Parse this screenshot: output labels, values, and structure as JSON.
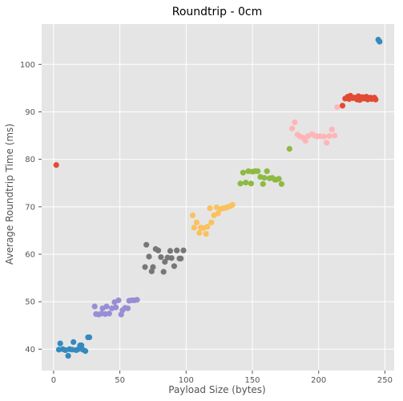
{
  "chart_data": {
    "type": "scatter",
    "title": "Roundtrip - 0cm",
    "xlabel": "Payload Size (bytes)",
    "ylabel": "Average Roundtrip Time (ms)",
    "xlim": [
      -9,
      257
    ],
    "ylim": [
      35.5,
      108.5
    ],
    "xticks": [
      0,
      50,
      100,
      150,
      200,
      250
    ],
    "yticks": [
      40,
      50,
      60,
      70,
      80,
      90,
      100
    ],
    "grid": true,
    "colors": {
      "background": "#E5E5E5",
      "grid": "#FFFFFF",
      "text": "#555555",
      "title": "#000000"
    },
    "series": [
      {
        "color": "#E24A33",
        "points": [
          [
            2,
            78.8
          ],
          [
            218,
            91.3
          ],
          [
            220,
            92.8
          ],
          [
            222,
            93.2
          ],
          [
            223,
            92.7
          ],
          [
            224,
            93.4
          ],
          [
            226,
            92.9
          ],
          [
            227,
            93.0
          ],
          [
            229,
            92.6
          ],
          [
            230,
            93.3
          ],
          [
            231,
            92.5
          ],
          [
            233,
            93.1
          ],
          [
            234,
            92.8
          ],
          [
            236,
            93.2
          ],
          [
            237,
            92.6
          ],
          [
            239,
            93.0
          ],
          [
            240,
            92.7
          ],
          [
            242,
            93.0
          ],
          [
            243,
            92.6
          ]
        ]
      },
      {
        "color": "#348ABD",
        "points": [
          [
            4,
            39.9
          ],
          [
            5,
            41.2
          ],
          [
            7,
            40.0
          ],
          [
            9,
            39.8
          ],
          [
            11,
            38.6
          ],
          [
            12,
            40.0
          ],
          [
            14,
            39.9
          ],
          [
            15,
            41.5
          ],
          [
            17,
            39.8
          ],
          [
            18,
            39.9
          ],
          [
            20,
            40.8
          ],
          [
            21,
            40.8
          ],
          [
            22,
            39.9
          ],
          [
            24,
            39.6
          ],
          [
            26,
            42.5
          ],
          [
            27,
            42.5
          ],
          [
            245,
            105.2
          ],
          [
            246,
            104.8
          ]
        ]
      },
      {
        "color": "#988ED5",
        "points": [
          [
            31,
            49.0
          ],
          [
            32,
            47.4
          ],
          [
            34,
            47.3
          ],
          [
            36,
            47.5
          ],
          [
            37,
            48.6
          ],
          [
            39,
            47.4
          ],
          [
            40,
            49.0
          ],
          [
            42,
            47.5
          ],
          [
            44,
            48.6
          ],
          [
            46,
            49.9
          ],
          [
            47,
            48.8
          ],
          [
            49,
            50.3
          ],
          [
            51,
            47.3
          ],
          [
            52,
            48.2
          ],
          [
            54,
            48.7
          ],
          [
            56,
            48.6
          ],
          [
            57,
            50.2
          ],
          [
            59,
            50.3
          ],
          [
            61,
            50.3
          ],
          [
            63,
            50.4
          ]
        ]
      },
      {
        "color": "#777777",
        "points": [
          [
            69,
            57.3
          ],
          [
            70,
            62.0
          ],
          [
            72,
            59.5
          ],
          [
            74,
            56.4
          ],
          [
            75,
            57.3
          ],
          [
            77,
            61.1
          ],
          [
            79,
            60.8
          ],
          [
            81,
            59.4
          ],
          [
            83,
            56.3
          ],
          [
            84,
            58.4
          ],
          [
            86,
            59.3
          ],
          [
            88,
            60.7
          ],
          [
            89,
            59.2
          ],
          [
            91,
            57.5
          ],
          [
            93,
            60.8
          ],
          [
            95,
            59.1
          ],
          [
            96,
            59.1
          ],
          [
            98,
            60.8
          ]
        ]
      },
      {
        "color": "#FBC15E",
        "points": [
          [
            105,
            68.2
          ],
          [
            106,
            65.6
          ],
          [
            108,
            66.7
          ],
          [
            110,
            64.5
          ],
          [
            111,
            65.6
          ],
          [
            113,
            65.5
          ],
          [
            115,
            64.3
          ],
          [
            116,
            65.8
          ],
          [
            118,
            69.7
          ],
          [
            119,
            66.7
          ],
          [
            121,
            68.2
          ],
          [
            123,
            69.9
          ],
          [
            124,
            68.6
          ],
          [
            126,
            69.5
          ],
          [
            128,
            69.7
          ],
          [
            130,
            69.8
          ],
          [
            131,
            69.9
          ],
          [
            133,
            70.1
          ],
          [
            135,
            70.4
          ]
        ]
      },
      {
        "color": "#8EBA42",
        "points": [
          [
            141,
            74.9
          ],
          [
            143,
            77.2
          ],
          [
            145,
            75.1
          ],
          [
            147,
            77.5
          ],
          [
            149,
            74.9
          ],
          [
            150,
            77.4
          ],
          [
            152,
            77.5
          ],
          [
            154,
            77.5
          ],
          [
            156,
            76.3
          ],
          [
            158,
            74.8
          ],
          [
            159,
            76.1
          ],
          [
            161,
            77.5
          ],
          [
            163,
            76.0
          ],
          [
            165,
            76.1
          ],
          [
            167,
            75.7
          ],
          [
            168,
            75.7
          ],
          [
            170,
            75.9
          ],
          [
            172,
            74.8
          ],
          [
            178,
            82.2
          ]
        ]
      },
      {
        "color": "#FFB5B8",
        "points": [
          [
            180,
            86.5
          ],
          [
            182,
            87.8
          ],
          [
            184,
            85.2
          ],
          [
            186,
            84.8
          ],
          [
            188,
            84.6
          ],
          [
            190,
            83.9
          ],
          [
            192,
            84.9
          ],
          [
            195,
            85.3
          ],
          [
            197,
            85.0
          ],
          [
            199,
            84.8
          ],
          [
            201,
            84.9
          ],
          [
            204,
            84.8
          ],
          [
            206,
            83.5
          ],
          [
            208,
            84.9
          ],
          [
            210,
            86.3
          ],
          [
            212,
            85.0
          ],
          [
            214,
            91.0
          ]
        ]
      }
    ]
  }
}
